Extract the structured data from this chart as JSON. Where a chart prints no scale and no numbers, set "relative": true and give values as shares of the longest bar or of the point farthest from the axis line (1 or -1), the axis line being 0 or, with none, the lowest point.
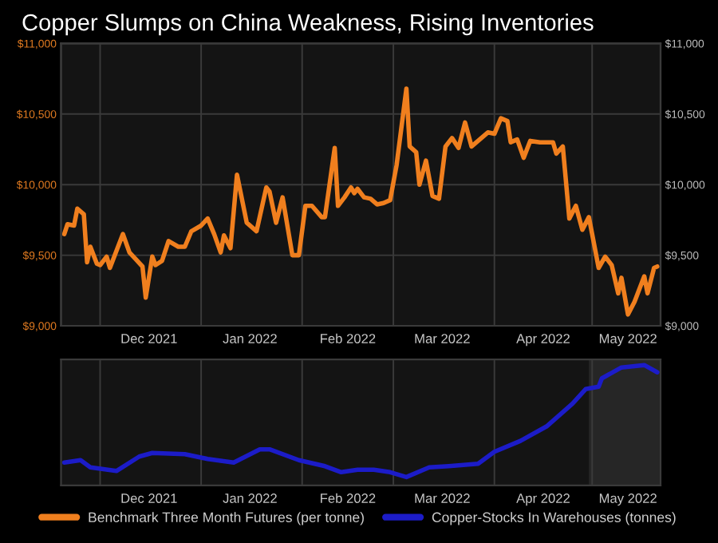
{
  "chart_data": [
    {
      "type": "line",
      "title": "Copper Slumps on China Weakness, Rising Inventories",
      "x": [
        "2021-11-20",
        "2021-11-21",
        "2021-11-23",
        "2021-11-24",
        "2021-11-26",
        "2021-11-27",
        "2021-11-28",
        "2021-11-30",
        "2021-12-01",
        "2021-12-03",
        "2021-12-04",
        "2021-12-06",
        "2021-12-08",
        "2021-12-10",
        "2021-12-12",
        "2021-12-14",
        "2021-12-15",
        "2021-12-17",
        "2021-12-18",
        "2021-12-20",
        "2021-12-22",
        "2021-12-25",
        "2021-12-27",
        "2021-12-29",
        "2022-01-01",
        "2022-01-03",
        "2022-01-05",
        "2022-01-07",
        "2022-01-08",
        "2022-01-10",
        "2022-01-12",
        "2022-01-15",
        "2022-01-18",
        "2022-01-21",
        "2022-01-22",
        "2022-01-24",
        "2022-01-26",
        "2022-01-29",
        "2022-01-31",
        "2022-02-02",
        "2022-02-04",
        "2022-02-07",
        "2022-02-08",
        "2022-02-11",
        "2022-02-12",
        "2022-02-14",
        "2022-02-16",
        "2022-02-17",
        "2022-02-18",
        "2022-02-20",
        "2022-02-22",
        "2022-02-24",
        "2022-02-26",
        "2022-02-28",
        "2022-03-02",
        "2022-03-05",
        "2022-03-06",
        "2022-03-08",
        "2022-03-09",
        "2022-03-11",
        "2022-03-13",
        "2022-03-15",
        "2022-03-17",
        "2022-03-19",
        "2022-03-21",
        "2022-03-23",
        "2022-03-25",
        "2022-03-28",
        "2022-03-30",
        "2022-04-01",
        "2022-04-03",
        "2022-04-05",
        "2022-04-06",
        "2022-04-08",
        "2022-04-10",
        "2022-04-12",
        "2022-04-15",
        "2022-04-19",
        "2022-04-20",
        "2022-04-22",
        "2022-04-24",
        "2022-04-26",
        "2022-04-28",
        "2022-04-30",
        "2022-05-03",
        "2022-05-05",
        "2022-05-07",
        "2022-05-09",
        "2022-05-10",
        "2022-05-12",
        "2022-05-14",
        "2022-05-17",
        "2022-05-18",
        "2022-05-20",
        "2022-05-21"
      ],
      "series": [
        {
          "name": "Benchmark Three Month Futures (per tonne)",
          "color": "#f07f1e",
          "values": [
            9650,
            9720,
            9710,
            9830,
            9790,
            9450,
            9560,
            9440,
            9430,
            9490,
            9410,
            9530,
            9650,
            9520,
            9470,
            9420,
            9200,
            9490,
            9430,
            9460,
            9600,
            9560,
            9560,
            9670,
            9710,
            9760,
            9650,
            9520,
            9640,
            9550,
            10070,
            9730,
            9670,
            9980,
            9950,
            9730,
            9910,
            9500,
            9500,
            9850,
            9850,
            9770,
            9770,
            10260,
            9850,
            9910,
            9980,
            9940,
            9970,
            9910,
            9900,
            9860,
            9870,
            9890,
            10140,
            10680,
            10270,
            10230,
            10000,
            10170,
            9920,
            9900,
            10270,
            10330,
            10260,
            10440,
            10270,
            10330,
            10370,
            10360,
            10470,
            10450,
            10300,
            10320,
            10190,
            10310,
            10300,
            10300,
            10220,
            10270,
            9760,
            9850,
            9680,
            9770,
            9410,
            9490,
            9430,
            9230,
            9340,
            9080,
            9170,
            9350,
            9230,
            9410,
            9420
          ]
        }
      ],
      "xlim": [
        "2021-11-19",
        "2022-05-22"
      ],
      "xticks": [
        {
          "value": "2021-12-01",
          "label": null
        },
        {
          "value": "2021-12-16",
          "label": "Dec 2021"
        },
        {
          "value": "2022-01-01",
          "label": null
        },
        {
          "value": "2022-01-16",
          "label": "Jan 2022"
        },
        {
          "value": "2022-02-01",
          "label": null
        },
        {
          "value": "2022-02-15",
          "label": "Feb 2022"
        },
        {
          "value": "2022-03-01",
          "label": null
        },
        {
          "value": "2022-03-16",
          "label": "Mar 2022"
        },
        {
          "value": "2022-04-01",
          "label": null
        },
        {
          "value": "2022-04-16",
          "label": "Apr 2022"
        },
        {
          "value": "2022-05-01",
          "label": null
        },
        {
          "value": "2022-05-12",
          "label": "May 2022"
        }
      ],
      "ylim": [
        9000,
        11000
      ],
      "yticks": [
        {
          "value": 9000,
          "label": "$9,000"
        },
        {
          "value": 9500,
          "label": "$9,500"
        },
        {
          "value": 10000,
          "label": "$10,000"
        },
        {
          "value": 10500,
          "label": "$10,500"
        },
        {
          "value": 11000,
          "label": "$11,000"
        }
      ],
      "y2lim": [
        9000,
        11000
      ],
      "y2ticks": [
        {
          "value": 9000,
          "label": "$9,000"
        },
        {
          "value": 9500,
          "label": "$9,500"
        },
        {
          "value": 10000,
          "label": "$10,000"
        },
        {
          "value": 10500,
          "label": "$10,500"
        },
        {
          "value": 11000,
          "label": "$11,000"
        }
      ],
      "grid": true,
      "legend": "bottom"
    },
    {
      "type": "line",
      "relative": true,
      "x": [
        "2021-11-20",
        "2021-11-25",
        "2021-11-28",
        "2021-12-06",
        "2021-12-13",
        "2021-12-17",
        "2021-12-27",
        "2022-01-03",
        "2022-01-11",
        "2022-01-19",
        "2022-01-22",
        "2022-01-31",
        "2022-02-08",
        "2022-02-13",
        "2022-02-18",
        "2022-02-23",
        "2022-02-28",
        "2022-03-05",
        "2022-03-12",
        "2022-03-18",
        "2022-03-27",
        "2022-04-01",
        "2022-04-09",
        "2022-04-17",
        "2022-04-25",
        "2022-04-29",
        "2022-05-03",
        "2022-05-04",
        "2022-05-10",
        "2022-05-17",
        "2022-05-21"
      ],
      "series": [
        {
          "name": "Copper-Stocks In Warehouses (tonnes)",
          "color": "#1c1cc8",
          "values": [
            0.19,
            0.21,
            0.15,
            0.12,
            0.24,
            0.27,
            0.26,
            0.22,
            0.19,
            0.3,
            0.3,
            0.21,
            0.16,
            0.11,
            0.13,
            0.13,
            0.11,
            0.07,
            0.15,
            0.16,
            0.18,
            0.28,
            0.37,
            0.49,
            0.68,
            0.8,
            0.82,
            0.89,
            0.98,
            1,
            0.94
          ]
        }
      ],
      "xlim": [
        "2021-11-19",
        "2022-05-22"
      ],
      "xticks": [
        {
          "value": "2021-12-01",
          "label": null
        },
        {
          "value": "2021-12-16",
          "label": "Dec 2021"
        },
        {
          "value": "2022-01-01",
          "label": null
        },
        {
          "value": "2022-01-16",
          "label": "Jan 2022"
        },
        {
          "value": "2022-02-01",
          "label": null
        },
        {
          "value": "2022-02-15",
          "label": "Feb 2022"
        },
        {
          "value": "2022-03-01",
          "label": null
        },
        {
          "value": "2022-03-16",
          "label": "Mar 2022"
        },
        {
          "value": "2022-04-01",
          "label": null
        },
        {
          "value": "2022-04-16",
          "label": "Apr 2022"
        },
        {
          "value": "2022-05-01",
          "label": null
        },
        {
          "value": "2022-05-12",
          "label": "May 2022"
        }
      ],
      "bands": [
        {
          "axis": "x",
          "from": "2022-04-30",
          "to": "2022-05-22",
          "label": null,
          "color": "#262626"
        }
      ],
      "grid": "x",
      "legend": "bottom"
    }
  ]
}
